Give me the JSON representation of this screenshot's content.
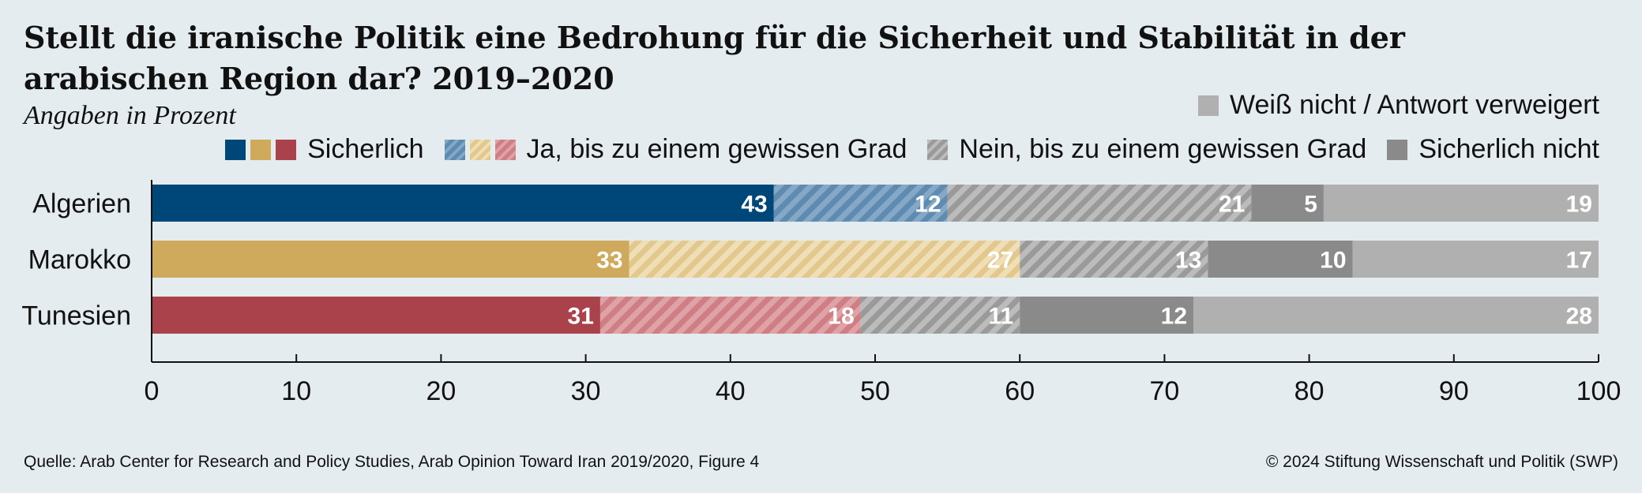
{
  "title": "Stellt die iranische Politik eine Bedrohung für die Sicherheit und Stabilität in der arabischen Region dar? 2019–2020",
  "subtitle": "Angaben in Prozent",
  "legend": {
    "sicherlich": "Sicherlich",
    "ja_gewisser_grad": "Ja, bis zu einem gewissen Grad",
    "nein_gewisser_grad": "Nein, bis zu einem gewissen Grad",
    "sicherlich_nicht": "Sicherlich nicht",
    "weiss_nicht": "Weiß nicht / Antwort verweigert"
  },
  "colors": {
    "algerien_solid": "#004779",
    "algerien_hatch": "#6f98bb",
    "marokko_solid": "#cfa95c",
    "marokko_hatch": "#e9d29f",
    "tunesien_solid": "#a9424a",
    "tunesien_hatch": "#d58f94",
    "nein_hatch": "#ababab",
    "sicherlich_nicht": "#8a8a8a",
    "weiss_nicht": "#b0b0b0",
    "background": "#e4ecef"
  },
  "chart_data": {
    "type": "bar",
    "orientation": "horizontal",
    "stacked": true,
    "categories": [
      "Algerien",
      "Marokko",
      "Tunesien"
    ],
    "series": [
      {
        "name": "Sicherlich",
        "values": [
          43,
          33,
          31
        ]
      },
      {
        "name": "Ja, bis zu einem gewissen Grad",
        "values": [
          12,
          27,
          18
        ]
      },
      {
        "name": "Nein, bis zu einem gewissen Grad",
        "values": [
          21,
          13,
          11
        ]
      },
      {
        "name": "Sicherlich nicht",
        "values": [
          5,
          10,
          12
        ]
      },
      {
        "name": "Weiß nicht / Antwort verweigert",
        "values": [
          19,
          17,
          28
        ]
      }
    ],
    "xlim": [
      0,
      100
    ],
    "xticks": [
      "0",
      "10",
      "20",
      "30",
      "40",
      "50",
      "60",
      "70",
      "80",
      "90",
      "100"
    ],
    "legend_position": "top-right",
    "grid": false
  },
  "footer": {
    "source": "Quelle: Arab Center for Research and Policy Studies, Arab Opinion Toward Iran 2019/2020, Figure 4",
    "copyright": "© 2024 Stiftung Wissenschaft und Politik (SWP)"
  }
}
